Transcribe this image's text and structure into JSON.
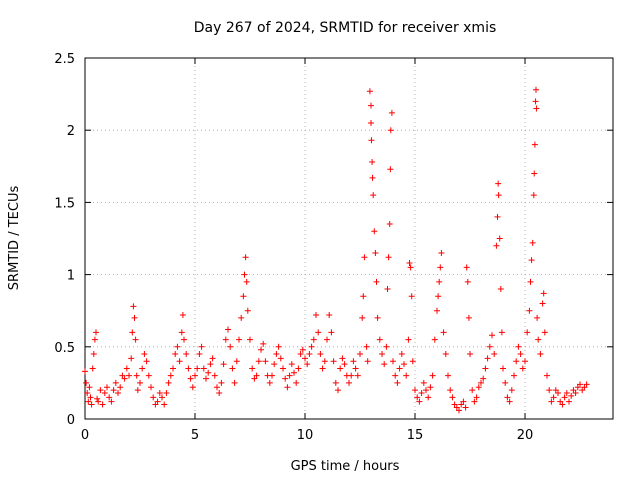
{
  "chart_data": {
    "type": "scatter",
    "title": "Day 267 of 2024, SRMTID for receiver xmis",
    "xlabel": "GPS time / hours",
    "ylabel": "SRMTID / TECUs",
    "xlim": [
      0,
      24
    ],
    "ylim": [
      0,
      2.5
    ],
    "x_ticks": [
      0,
      5,
      10,
      15,
      20
    ],
    "x_tick_labels": [
      "0",
      "5",
      "10",
      "15",
      "20"
    ],
    "y_ticks": [
      0,
      0.5,
      1,
      1.5,
      2,
      2.5
    ],
    "y_tick_labels": [
      "0",
      "0.5",
      "1",
      "1.5",
      "2",
      "2.5"
    ],
    "grid": true,
    "marker": "+",
    "color": "#ff0000",
    "series": [
      {
        "name": "SRMTID",
        "points": [
          [
            0.0,
            0.33
          ],
          [
            0.05,
            0.25
          ],
          [
            0.1,
            0.18
          ],
          [
            0.15,
            0.12
          ],
          [
            0.2,
            0.22
          ],
          [
            0.25,
            0.15
          ],
          [
            0.3,
            0.1
          ],
          [
            0.35,
            0.35
          ],
          [
            0.4,
            0.45
          ],
          [
            0.45,
            0.55
          ],
          [
            0.5,
            0.6
          ],
          [
            0.55,
            0.14
          ],
          [
            0.6,
            0.12
          ],
          [
            0.7,
            0.2
          ],
          [
            0.8,
            0.1
          ],
          [
            0.9,
            0.18
          ],
          [
            1.0,
            0.22
          ],
          [
            1.1,
            0.15
          ],
          [
            1.2,
            0.12
          ],
          [
            1.3,
            0.2
          ],
          [
            1.4,
            0.25
          ],
          [
            1.5,
            0.18
          ],
          [
            1.6,
            0.22
          ],
          [
            1.7,
            0.3
          ],
          [
            1.8,
            0.28
          ],
          [
            1.9,
            0.35
          ],
          [
            2.0,
            0.3
          ],
          [
            2.1,
            0.42
          ],
          [
            2.15,
            0.6
          ],
          [
            2.2,
            0.78
          ],
          [
            2.25,
            0.7
          ],
          [
            2.3,
            0.55
          ],
          [
            2.35,
            0.3
          ],
          [
            2.4,
            0.2
          ],
          [
            2.5,
            0.25
          ],
          [
            2.6,
            0.35
          ],
          [
            2.7,
            0.45
          ],
          [
            2.8,
            0.4
          ],
          [
            2.9,
            0.3
          ],
          [
            3.0,
            0.22
          ],
          [
            3.1,
            0.15
          ],
          [
            3.2,
            0.1
          ],
          [
            3.3,
            0.12
          ],
          [
            3.4,
            0.18
          ],
          [
            3.5,
            0.15
          ],
          [
            3.6,
            0.1
          ],
          [
            3.7,
            0.18
          ],
          [
            3.8,
            0.25
          ],
          [
            3.9,
            0.3
          ],
          [
            4.0,
            0.35
          ],
          [
            4.1,
            0.45
          ],
          [
            4.2,
            0.5
          ],
          [
            4.3,
            0.4
          ],
          [
            4.4,
            0.6
          ],
          [
            4.45,
            0.72
          ],
          [
            4.5,
            0.55
          ],
          [
            4.6,
            0.45
          ],
          [
            4.7,
            0.35
          ],
          [
            4.8,
            0.28
          ],
          [
            4.9,
            0.22
          ],
          [
            5.0,
            0.3
          ],
          [
            5.1,
            0.35
          ],
          [
            5.2,
            0.45
          ],
          [
            5.3,
            0.5
          ],
          [
            5.4,
            0.35
          ],
          [
            5.5,
            0.28
          ],
          [
            5.6,
            0.32
          ],
          [
            5.7,
            0.38
          ],
          [
            5.8,
            0.42
          ],
          [
            5.9,
            0.3
          ],
          [
            6.0,
            0.22
          ],
          [
            6.1,
            0.18
          ],
          [
            6.2,
            0.25
          ],
          [
            6.3,
            0.38
          ],
          [
            6.4,
            0.55
          ],
          [
            6.5,
            0.62
          ],
          [
            6.6,
            0.5
          ],
          [
            6.7,
            0.35
          ],
          [
            6.8,
            0.25
          ],
          [
            6.9,
            0.4
          ],
          [
            7.0,
            0.55
          ],
          [
            7.1,
            0.7
          ],
          [
            7.2,
            0.85
          ],
          [
            7.25,
            1.0
          ],
          [
            7.3,
            1.12
          ],
          [
            7.35,
            0.95
          ],
          [
            7.4,
            0.75
          ],
          [
            7.5,
            0.55
          ],
          [
            7.6,
            0.35
          ],
          [
            7.7,
            0.28
          ],
          [
            7.8,
            0.3
          ],
          [
            7.9,
            0.4
          ],
          [
            8.0,
            0.48
          ],
          [
            8.1,
            0.52
          ],
          [
            8.2,
            0.4
          ],
          [
            8.3,
            0.3
          ],
          [
            8.4,
            0.25
          ],
          [
            8.5,
            0.3
          ],
          [
            8.6,
            0.38
          ],
          [
            8.7,
            0.45
          ],
          [
            8.8,
            0.5
          ],
          [
            8.9,
            0.42
          ],
          [
            9.0,
            0.35
          ],
          [
            9.1,
            0.28
          ],
          [
            9.2,
            0.22
          ],
          [
            9.3,
            0.3
          ],
          [
            9.4,
            0.38
          ],
          [
            9.5,
            0.32
          ],
          [
            9.6,
            0.25
          ],
          [
            9.7,
            0.35
          ],
          [
            9.8,
            0.45
          ],
          [
            9.9,
            0.48
          ],
          [
            10.0,
            0.42
          ],
          [
            10.1,
            0.38
          ],
          [
            10.2,
            0.45
          ],
          [
            10.3,
            0.5
          ],
          [
            10.4,
            0.55
          ],
          [
            10.5,
            0.72
          ],
          [
            10.6,
            0.6
          ],
          [
            10.7,
            0.45
          ],
          [
            10.8,
            0.35
          ],
          [
            10.9,
            0.4
          ],
          [
            11.0,
            0.55
          ],
          [
            11.1,
            0.72
          ],
          [
            11.2,
            0.6
          ],
          [
            11.3,
            0.4
          ],
          [
            11.4,
            0.25
          ],
          [
            11.5,
            0.2
          ],
          [
            11.6,
            0.35
          ],
          [
            11.7,
            0.42
          ],
          [
            11.8,
            0.38
          ],
          [
            11.9,
            0.3
          ],
          [
            12.0,
            0.25
          ],
          [
            12.1,
            0.3
          ],
          [
            12.2,
            0.4
          ],
          [
            12.3,
            0.35
          ],
          [
            12.4,
            0.3
          ],
          [
            12.5,
            0.45
          ],
          [
            12.6,
            0.7
          ],
          [
            12.65,
            0.85
          ],
          [
            12.7,
            1.12
          ],
          [
            12.8,
            0.5
          ],
          [
            12.85,
            0.4
          ],
          [
            12.95,
            2.27
          ],
          [
            13.0,
            2.17
          ],
          [
            13.0,
            2.05
          ],
          [
            13.02,
            1.93
          ],
          [
            13.05,
            1.78
          ],
          [
            13.07,
            1.67
          ],
          [
            13.1,
            1.55
          ],
          [
            13.15,
            1.3
          ],
          [
            13.2,
            1.15
          ],
          [
            13.25,
            0.95
          ],
          [
            13.3,
            0.7
          ],
          [
            13.4,
            0.55
          ],
          [
            13.5,
            0.45
          ],
          [
            13.6,
            0.38
          ],
          [
            13.7,
            0.5
          ],
          [
            13.75,
            0.9
          ],
          [
            13.8,
            1.12
          ],
          [
            13.85,
            1.35
          ],
          [
            13.88,
            1.73
          ],
          [
            13.9,
            2.0
          ],
          [
            13.95,
            2.12
          ],
          [
            14.0,
            0.4
          ],
          [
            14.1,
            0.3
          ],
          [
            14.2,
            0.25
          ],
          [
            14.3,
            0.35
          ],
          [
            14.4,
            0.45
          ],
          [
            14.5,
            0.38
          ],
          [
            14.6,
            0.3
          ],
          [
            14.7,
            0.55
          ],
          [
            14.75,
            1.08
          ],
          [
            14.8,
            1.05
          ],
          [
            14.85,
            0.85
          ],
          [
            14.9,
            0.4
          ],
          [
            15.0,
            0.2
          ],
          [
            15.1,
            0.15
          ],
          [
            15.2,
            0.12
          ],
          [
            15.3,
            0.18
          ],
          [
            15.4,
            0.25
          ],
          [
            15.5,
            0.2
          ],
          [
            15.6,
            0.15
          ],
          [
            15.7,
            0.22
          ],
          [
            15.8,
            0.3
          ],
          [
            15.9,
            0.55
          ],
          [
            16.0,
            0.75
          ],
          [
            16.05,
            0.85
          ],
          [
            16.1,
            0.95
          ],
          [
            16.15,
            1.05
          ],
          [
            16.2,
            1.15
          ],
          [
            16.3,
            0.6
          ],
          [
            16.4,
            0.45
          ],
          [
            16.5,
            0.3
          ],
          [
            16.6,
            0.2
          ],
          [
            16.7,
            0.15
          ],
          [
            16.8,
            0.1
          ],
          [
            16.9,
            0.08
          ],
          [
            17.0,
            0.06
          ],
          [
            17.1,
            0.1
          ],
          [
            17.2,
            0.12
          ],
          [
            17.3,
            0.08
          ],
          [
            17.35,
            1.05
          ],
          [
            17.4,
            0.95
          ],
          [
            17.45,
            0.7
          ],
          [
            17.5,
            0.45
          ],
          [
            17.6,
            0.2
          ],
          [
            17.7,
            0.12
          ],
          [
            17.8,
            0.15
          ],
          [
            17.9,
            0.22
          ],
          [
            18.0,
            0.25
          ],
          [
            18.1,
            0.28
          ],
          [
            18.2,
            0.35
          ],
          [
            18.3,
            0.42
          ],
          [
            18.4,
            0.5
          ],
          [
            18.5,
            0.58
          ],
          [
            18.6,
            0.45
          ],
          [
            18.7,
            1.2
          ],
          [
            18.75,
            1.4
          ],
          [
            18.78,
            1.63
          ],
          [
            18.8,
            1.55
          ],
          [
            18.85,
            1.25
          ],
          [
            18.9,
            0.9
          ],
          [
            18.95,
            0.6
          ],
          [
            19.0,
            0.35
          ],
          [
            19.1,
            0.25
          ],
          [
            19.2,
            0.15
          ],
          [
            19.3,
            0.12
          ],
          [
            19.4,
            0.2
          ],
          [
            19.5,
            0.3
          ],
          [
            19.6,
            0.4
          ],
          [
            19.7,
            0.5
          ],
          [
            19.8,
            0.45
          ],
          [
            19.9,
            0.35
          ],
          [
            20.0,
            0.4
          ],
          [
            20.1,
            0.6
          ],
          [
            20.2,
            0.75
          ],
          [
            20.25,
            0.95
          ],
          [
            20.3,
            1.1
          ],
          [
            20.35,
            1.22
          ],
          [
            20.4,
            1.55
          ],
          [
            20.42,
            1.7
          ],
          [
            20.45,
            1.9
          ],
          [
            20.48,
            2.2
          ],
          [
            20.5,
            2.28
          ],
          [
            20.52,
            2.15
          ],
          [
            20.55,
            0.7
          ],
          [
            20.6,
            0.55
          ],
          [
            20.7,
            0.45
          ],
          [
            20.8,
            0.8
          ],
          [
            20.85,
            0.87
          ],
          [
            20.9,
            0.6
          ],
          [
            21.0,
            0.3
          ],
          [
            21.1,
            0.2
          ],
          [
            21.2,
            0.12
          ],
          [
            21.3,
            0.15
          ],
          [
            21.4,
            0.2
          ],
          [
            21.5,
            0.18
          ],
          [
            21.6,
            0.12
          ],
          [
            21.7,
            0.1
          ],
          [
            21.8,
            0.15
          ],
          [
            21.9,
            0.18
          ],
          [
            22.0,
            0.12
          ],
          [
            22.1,
            0.16
          ],
          [
            22.2,
            0.2
          ],
          [
            22.3,
            0.18
          ],
          [
            22.4,
            0.22
          ],
          [
            22.5,
            0.24
          ],
          [
            22.6,
            0.2
          ],
          [
            22.7,
            0.22
          ],
          [
            22.8,
            0.24
          ]
        ]
      }
    ]
  }
}
